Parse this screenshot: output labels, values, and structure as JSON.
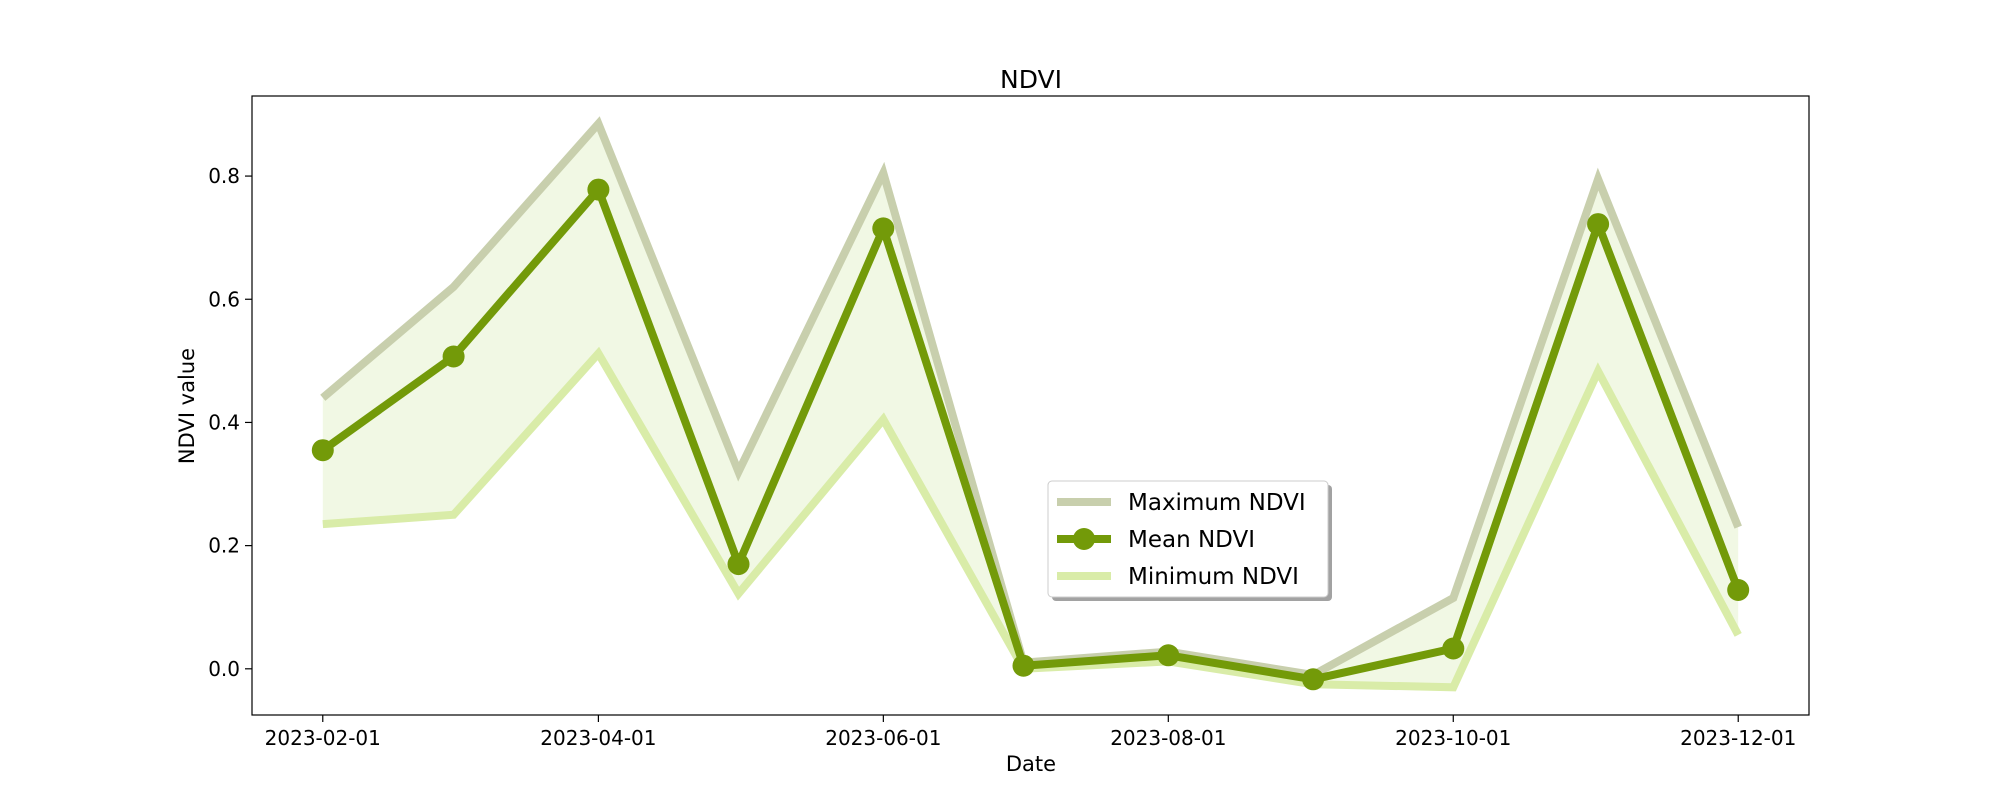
{
  "chart_data": {
    "type": "line",
    "title": "NDVI",
    "xlabel": "Date",
    "ylabel": "NDVI value",
    "x": [
      "2023-02-01",
      "2023-03-01",
      "2023-04-01",
      "2023-05-01",
      "2023-06-01",
      "2023-07-01",
      "2023-08-01",
      "2023-09-01",
      "2023-10-01",
      "2023-11-01",
      "2023-12-01"
    ],
    "xticks": [
      "2023-02-01",
      "2023-04-01",
      "2023-06-01",
      "2023-08-01",
      "2023-10-01",
      "2023-12-01"
    ],
    "yticks": [
      "0.0",
      "0.2",
      "0.4",
      "0.6",
      "0.8"
    ],
    "ylim": [
      -0.075,
      0.93
    ],
    "grid": false,
    "legend_position": "center-right",
    "series": [
      {
        "name": "Maximum NDVI",
        "color": "#c8cfad",
        "values": [
          0.44,
          0.62,
          0.885,
          0.32,
          0.805,
          0.01,
          0.028,
          -0.01,
          0.115,
          0.795,
          0.23
        ]
      },
      {
        "name": "Mean NDVI",
        "color": "#739a09",
        "marker": "circle",
        "values": [
          0.355,
          0.507,
          0.778,
          0.17,
          0.715,
          0.005,
          0.022,
          -0.017,
          0.033,
          0.722,
          0.128
        ]
      },
      {
        "name": "Minimum NDVI",
        "color": "#d9eca8",
        "values": [
          0.235,
          0.25,
          0.512,
          0.122,
          0.405,
          0.0,
          0.012,
          -0.025,
          -0.03,
          0.483,
          0.055
        ]
      }
    ],
    "fill_color": "#f1f8e4"
  }
}
